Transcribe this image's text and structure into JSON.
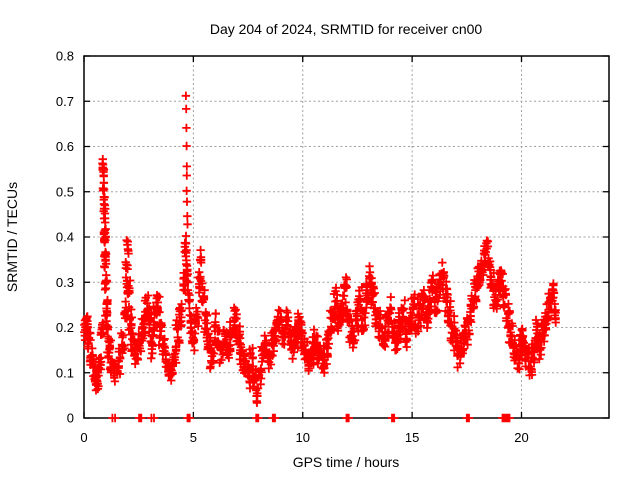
{
  "chart_data": {
    "type": "scatter",
    "title": "Day 204 of 2024, SRMTID for receiver cn00",
    "xlabel": "GPS time / hours",
    "ylabel": "SRMTID / TECUs",
    "x_range": [
      0,
      24
    ],
    "y_range": [
      0,
      0.8
    ],
    "x_ticks": [
      0,
      5,
      10,
      15,
      20
    ],
    "x_tick_labels": [
      "0",
      "5",
      "10",
      "15",
      "20"
    ],
    "y_ticks": [
      0,
      0.1,
      0.2,
      0.3,
      0.4,
      0.5,
      0.6,
      0.7,
      0.8
    ],
    "y_tick_labels": [
      "0",
      "0.1",
      "0.2",
      "0.3",
      "0.4",
      "0.5",
      "0.6",
      "0.7",
      "0.8"
    ],
    "grid": "dashed",
    "grid_color": "#a0a0a0",
    "marker": "plus",
    "marker_color": "#ff0000",
    "axis_color": "#000000",
    "background_color": "#ffffff",
    "spike_points": [
      [
        4.66,
        0.712
      ],
      [
        4.67,
        0.683
      ],
      [
        4.68,
        0.641
      ],
      [
        4.69,
        0.601
      ],
      [
        4.7,
        0.556
      ],
      [
        4.7,
        0.536
      ],
      [
        4.69,
        0.502
      ],
      [
        4.71,
        0.478
      ],
      [
        4.72,
        0.446
      ],
      [
        4.73,
        0.428
      ],
      [
        0.86,
        0.572
      ],
      [
        0.87,
        0.56
      ],
      [
        0.88,
        0.548
      ],
      [
        0.9,
        0.534
      ],
      [
        0.91,
        0.52
      ],
      [
        0.92,
        0.505
      ],
      [
        0.94,
        0.488
      ],
      [
        0.95,
        0.47
      ],
      [
        0.96,
        0.452
      ],
      [
        0.97,
        0.432
      ]
    ],
    "zero_markers": {
      "thin_x": [
        1.3,
        1.42,
        3.08,
        3.2,
        19.13,
        19.2,
        19.28
      ],
      "block_x": [
        2.57,
        4.78,
        7.92,
        8.68,
        12.05,
        14.13,
        17.55,
        19.4
      ]
    },
    "clusters": [
      [
        0.1,
        0.09,
        0.205,
        0.035,
        22
      ],
      [
        0.22,
        0.08,
        0.17,
        0.03,
        14
      ],
      [
        0.35,
        0.08,
        0.135,
        0.03,
        14
      ],
      [
        0.5,
        0.09,
        0.1,
        0.03,
        14
      ],
      [
        0.62,
        0.07,
        0.075,
        0.025,
        10
      ],
      [
        0.72,
        0.06,
        0.12,
        0.03,
        10
      ],
      [
        0.82,
        0.05,
        0.19,
        0.03,
        10
      ],
      [
        0.87,
        0.04,
        0.55,
        0.02,
        11
      ],
      [
        0.9,
        0.04,
        0.5,
        0.025,
        7
      ],
      [
        0.93,
        0.04,
        0.46,
        0.025,
        6
      ],
      [
        0.95,
        0.05,
        0.4,
        0.03,
        12
      ],
      [
        0.97,
        0.05,
        0.355,
        0.025,
        12
      ],
      [
        1.0,
        0.05,
        0.3,
        0.025,
        10
      ],
      [
        1.03,
        0.06,
        0.25,
        0.03,
        10
      ],
      [
        1.08,
        0.07,
        0.2,
        0.03,
        10
      ],
      [
        1.15,
        0.08,
        0.155,
        0.03,
        12
      ],
      [
        1.28,
        0.09,
        0.12,
        0.03,
        12
      ],
      [
        1.45,
        0.1,
        0.1,
        0.03,
        12
      ],
      [
        1.6,
        0.1,
        0.13,
        0.035,
        12
      ],
      [
        1.78,
        0.08,
        0.17,
        0.035,
        10
      ],
      [
        1.9,
        0.06,
        0.24,
        0.04,
        10
      ],
      [
        1.95,
        0.05,
        0.315,
        0.035,
        10
      ],
      [
        2.0,
        0.05,
        0.375,
        0.025,
        6
      ],
      [
        2.05,
        0.06,
        0.28,
        0.03,
        8
      ],
      [
        2.12,
        0.07,
        0.22,
        0.035,
        10
      ],
      [
        2.22,
        0.09,
        0.17,
        0.035,
        12
      ],
      [
        2.38,
        0.1,
        0.135,
        0.03,
        12
      ],
      [
        2.55,
        0.1,
        0.16,
        0.035,
        12
      ],
      [
        2.7,
        0.1,
        0.2,
        0.04,
        14
      ],
      [
        2.85,
        0.09,
        0.245,
        0.03,
        12
      ],
      [
        3.0,
        0.09,
        0.21,
        0.04,
        12
      ],
      [
        3.12,
        0.09,
        0.165,
        0.035,
        12
      ],
      [
        3.25,
        0.09,
        0.22,
        0.04,
        12
      ],
      [
        3.38,
        0.09,
        0.255,
        0.03,
        10
      ],
      [
        3.5,
        0.09,
        0.2,
        0.04,
        12
      ],
      [
        3.65,
        0.1,
        0.15,
        0.035,
        12
      ],
      [
        3.82,
        0.1,
        0.115,
        0.03,
        12
      ],
      [
        3.98,
        0.09,
        0.1,
        0.025,
        10
      ],
      [
        4.12,
        0.09,
        0.14,
        0.03,
        12
      ],
      [
        4.28,
        0.09,
        0.19,
        0.035,
        12
      ],
      [
        4.42,
        0.08,
        0.23,
        0.035,
        12
      ],
      [
        4.58,
        0.06,
        0.3,
        0.04,
        10
      ],
      [
        4.65,
        0.05,
        0.375,
        0.035,
        12
      ],
      [
        4.72,
        0.05,
        0.32,
        0.03,
        8
      ],
      [
        4.8,
        0.06,
        0.26,
        0.03,
        8
      ],
      [
        4.88,
        0.06,
        0.21,
        0.03,
        8
      ],
      [
        5.0,
        0.08,
        0.17,
        0.03,
        10
      ],
      [
        5.15,
        0.08,
        0.22,
        0.035,
        10
      ],
      [
        5.28,
        0.07,
        0.3,
        0.035,
        10
      ],
      [
        5.35,
        0.06,
        0.35,
        0.025,
        6
      ],
      [
        5.45,
        0.08,
        0.27,
        0.035,
        10
      ],
      [
        5.55,
        0.09,
        0.21,
        0.035,
        12
      ],
      [
        5.7,
        0.09,
        0.165,
        0.03,
        12
      ],
      [
        5.85,
        0.09,
        0.135,
        0.03,
        12
      ],
      [
        5.98,
        0.07,
        0.2,
        0.05,
        10
      ],
      [
        6.12,
        0.09,
        0.17,
        0.035,
        12
      ],
      [
        6.28,
        0.09,
        0.14,
        0.03,
        12
      ],
      [
        6.45,
        0.09,
        0.175,
        0.035,
        12
      ],
      [
        6.6,
        0.09,
        0.15,
        0.03,
        12
      ],
      [
        6.75,
        0.08,
        0.19,
        0.035,
        12
      ],
      [
        6.9,
        0.08,
        0.22,
        0.035,
        12
      ],
      [
        7.05,
        0.09,
        0.175,
        0.035,
        12
      ],
      [
        7.2,
        0.09,
        0.14,
        0.03,
        12
      ],
      [
        7.35,
        0.09,
        0.115,
        0.03,
        12
      ],
      [
        7.5,
        0.09,
        0.095,
        0.03,
        12
      ],
      [
        7.65,
        0.08,
        0.125,
        0.035,
        10
      ],
      [
        7.8,
        0.07,
        0.085,
        0.035,
        10
      ],
      [
        7.92,
        0.05,
        0.05,
        0.025,
        7
      ],
      [
        8.05,
        0.07,
        0.1,
        0.03,
        9
      ],
      [
        8.18,
        0.08,
        0.14,
        0.03,
        10
      ],
      [
        8.32,
        0.09,
        0.165,
        0.03,
        12
      ],
      [
        8.48,
        0.09,
        0.135,
        0.03,
        12
      ],
      [
        8.62,
        0.08,
        0.165,
        0.035,
        10
      ],
      [
        8.78,
        0.09,
        0.19,
        0.035,
        12
      ],
      [
        8.95,
        0.09,
        0.215,
        0.035,
        12
      ],
      [
        9.1,
        0.09,
        0.18,
        0.03,
        12
      ],
      [
        9.25,
        0.09,
        0.21,
        0.035,
        12
      ],
      [
        9.4,
        0.09,
        0.185,
        0.03,
        12
      ],
      [
        9.55,
        0.09,
        0.155,
        0.03,
        12
      ],
      [
        9.7,
        0.09,
        0.18,
        0.035,
        12
      ],
      [
        9.85,
        0.09,
        0.21,
        0.035,
        12
      ],
      [
        10.0,
        0.09,
        0.175,
        0.03,
        12
      ],
      [
        10.15,
        0.09,
        0.145,
        0.03,
        12
      ],
      [
        10.3,
        0.09,
        0.125,
        0.03,
        12
      ],
      [
        10.45,
        0.09,
        0.15,
        0.035,
        12
      ],
      [
        10.6,
        0.09,
        0.17,
        0.03,
        12
      ],
      [
        10.75,
        0.09,
        0.14,
        0.03,
        12
      ],
      [
        10.9,
        0.09,
        0.115,
        0.03,
        10
      ],
      [
        11.05,
        0.09,
        0.15,
        0.035,
        12
      ],
      [
        11.2,
        0.09,
        0.185,
        0.035,
        12
      ],
      [
        11.35,
        0.09,
        0.22,
        0.035,
        12
      ],
      [
        11.5,
        0.08,
        0.25,
        0.04,
        12
      ],
      [
        11.65,
        0.09,
        0.21,
        0.035,
        12
      ],
      [
        11.8,
        0.08,
        0.24,
        0.035,
        12
      ],
      [
        11.95,
        0.07,
        0.285,
        0.035,
        12
      ],
      [
        12.05,
        0.07,
        0.24,
        0.03,
        8
      ],
      [
        12.18,
        0.08,
        0.2,
        0.035,
        10
      ],
      [
        12.32,
        0.09,
        0.175,
        0.035,
        12
      ],
      [
        12.48,
        0.08,
        0.225,
        0.04,
        12
      ],
      [
        12.62,
        0.08,
        0.26,
        0.035,
        12
      ],
      [
        12.78,
        0.09,
        0.22,
        0.04,
        12
      ],
      [
        12.95,
        0.08,
        0.27,
        0.04,
        12
      ],
      [
        13.08,
        0.07,
        0.31,
        0.03,
        10
      ],
      [
        13.22,
        0.08,
        0.27,
        0.035,
        12
      ],
      [
        13.38,
        0.08,
        0.235,
        0.035,
        12
      ],
      [
        13.52,
        0.09,
        0.205,
        0.035,
        12
      ],
      [
        13.68,
        0.09,
        0.175,
        0.035,
        12
      ],
      [
        13.85,
        0.09,
        0.205,
        0.04,
        12
      ],
      [
        14.0,
        0.08,
        0.235,
        0.035,
        10
      ],
      [
        14.15,
        0.08,
        0.19,
        0.035,
        10
      ],
      [
        14.3,
        0.09,
        0.165,
        0.03,
        12
      ],
      [
        14.45,
        0.09,
        0.2,
        0.04,
        12
      ],
      [
        14.6,
        0.09,
        0.23,
        0.035,
        12
      ],
      [
        14.75,
        0.09,
        0.19,
        0.035,
        12
      ],
      [
        14.9,
        0.09,
        0.215,
        0.04,
        12
      ],
      [
        15.05,
        0.09,
        0.245,
        0.035,
        12
      ],
      [
        15.2,
        0.09,
        0.2,
        0.035,
        12
      ],
      [
        15.35,
        0.09,
        0.235,
        0.04,
        12
      ],
      [
        15.5,
        0.08,
        0.27,
        0.035,
        12
      ],
      [
        15.65,
        0.09,
        0.225,
        0.04,
        12
      ],
      [
        15.8,
        0.08,
        0.26,
        0.04,
        12
      ],
      [
        15.95,
        0.07,
        0.3,
        0.035,
        12
      ],
      [
        16.1,
        0.08,
        0.255,
        0.04,
        12
      ],
      [
        16.25,
        0.08,
        0.285,
        0.04,
        12
      ],
      [
        16.4,
        0.07,
        0.315,
        0.035,
        10
      ],
      [
        16.55,
        0.08,
        0.27,
        0.04,
        12
      ],
      [
        16.7,
        0.09,
        0.23,
        0.04,
        12
      ],
      [
        16.85,
        0.09,
        0.195,
        0.035,
        12
      ],
      [
        17.0,
        0.09,
        0.165,
        0.035,
        12
      ],
      [
        17.15,
        0.09,
        0.14,
        0.03,
        12
      ],
      [
        17.3,
        0.09,
        0.165,
        0.035,
        12
      ],
      [
        17.45,
        0.09,
        0.19,
        0.04,
        12
      ],
      [
        17.6,
        0.09,
        0.22,
        0.04,
        12
      ],
      [
        17.75,
        0.09,
        0.25,
        0.04,
        12
      ],
      [
        17.9,
        0.08,
        0.285,
        0.04,
        12
      ],
      [
        18.05,
        0.08,
        0.31,
        0.035,
        12
      ],
      [
        18.2,
        0.07,
        0.33,
        0.03,
        10
      ],
      [
        18.32,
        0.06,
        0.36,
        0.025,
        8
      ],
      [
        18.42,
        0.05,
        0.385,
        0.02,
        6
      ],
      [
        18.52,
        0.07,
        0.335,
        0.03,
        10
      ],
      [
        18.65,
        0.08,
        0.295,
        0.035,
        12
      ],
      [
        18.8,
        0.08,
        0.26,
        0.035,
        12
      ],
      [
        18.95,
        0.08,
        0.29,
        0.035,
        12
      ],
      [
        19.08,
        0.08,
        0.315,
        0.03,
        10
      ],
      [
        19.22,
        0.08,
        0.265,
        0.035,
        12
      ],
      [
        19.38,
        0.09,
        0.22,
        0.035,
        12
      ],
      [
        19.52,
        0.09,
        0.185,
        0.035,
        12
      ],
      [
        19.68,
        0.09,
        0.15,
        0.03,
        12
      ],
      [
        19.82,
        0.09,
        0.125,
        0.03,
        12
      ],
      [
        19.95,
        0.09,
        0.155,
        0.035,
        12
      ],
      [
        20.1,
        0.09,
        0.175,
        0.035,
        12
      ],
      [
        20.25,
        0.09,
        0.14,
        0.03,
        12
      ],
      [
        20.4,
        0.09,
        0.115,
        0.03,
        10
      ],
      [
        20.55,
        0.09,
        0.15,
        0.035,
        12
      ],
      [
        20.7,
        0.09,
        0.185,
        0.035,
        12
      ],
      [
        20.85,
        0.09,
        0.16,
        0.03,
        12
      ],
      [
        21.0,
        0.08,
        0.19,
        0.035,
        12
      ],
      [
        21.15,
        0.08,
        0.22,
        0.035,
        12
      ],
      [
        21.3,
        0.07,
        0.25,
        0.03,
        12
      ],
      [
        21.45,
        0.06,
        0.275,
        0.025,
        10
      ],
      [
        21.55,
        0.04,
        0.23,
        0.03,
        8
      ]
    ]
  }
}
